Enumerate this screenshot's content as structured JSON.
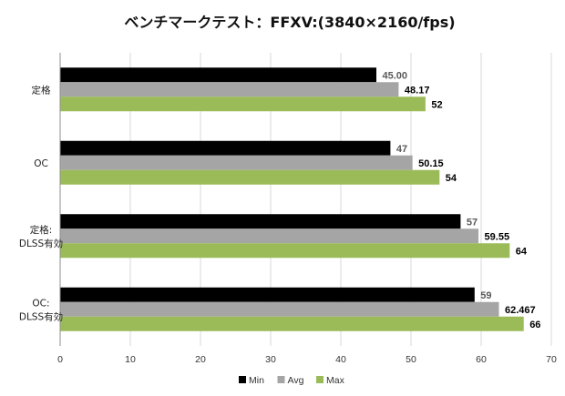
{
  "chart_data": {
    "type": "bar",
    "orientation": "horizontal",
    "title": "ベンチマークテスト：FFXV:(3840×2160/fps)",
    "categories": [
      [
        "定格"
      ],
      [
        "OC"
      ],
      [
        "定格:",
        "DLSS有効"
      ],
      [
        "OC:",
        "DLSS有効"
      ]
    ],
    "series": [
      {
        "name": "Min",
        "color": "#000000",
        "values": [
          45.0,
          47,
          57,
          59
        ],
        "labels": [
          "45.00",
          "47",
          "57",
          "59"
        ],
        "label_color": "#595959"
      },
      {
        "name": "Avg",
        "color": "#a5a5a5",
        "values": [
          48.17,
          50.15,
          59.55,
          62.467
        ],
        "labels": [
          "48.17",
          "50.15",
          "59.55",
          "62.467"
        ],
        "label_color": "#000000"
      },
      {
        "name": "Max",
        "color": "#9bbb59",
        "values": [
          52,
          54,
          64,
          66
        ],
        "labels": [
          "52",
          "54",
          "64",
          "66"
        ],
        "label_color": "#000000"
      }
    ],
    "xlim": [
      0,
      70
    ],
    "xticks": [
      "0",
      "10",
      "20",
      "30",
      "40",
      "50",
      "60",
      "70"
    ],
    "grid": true,
    "legend_position": "bottom"
  }
}
